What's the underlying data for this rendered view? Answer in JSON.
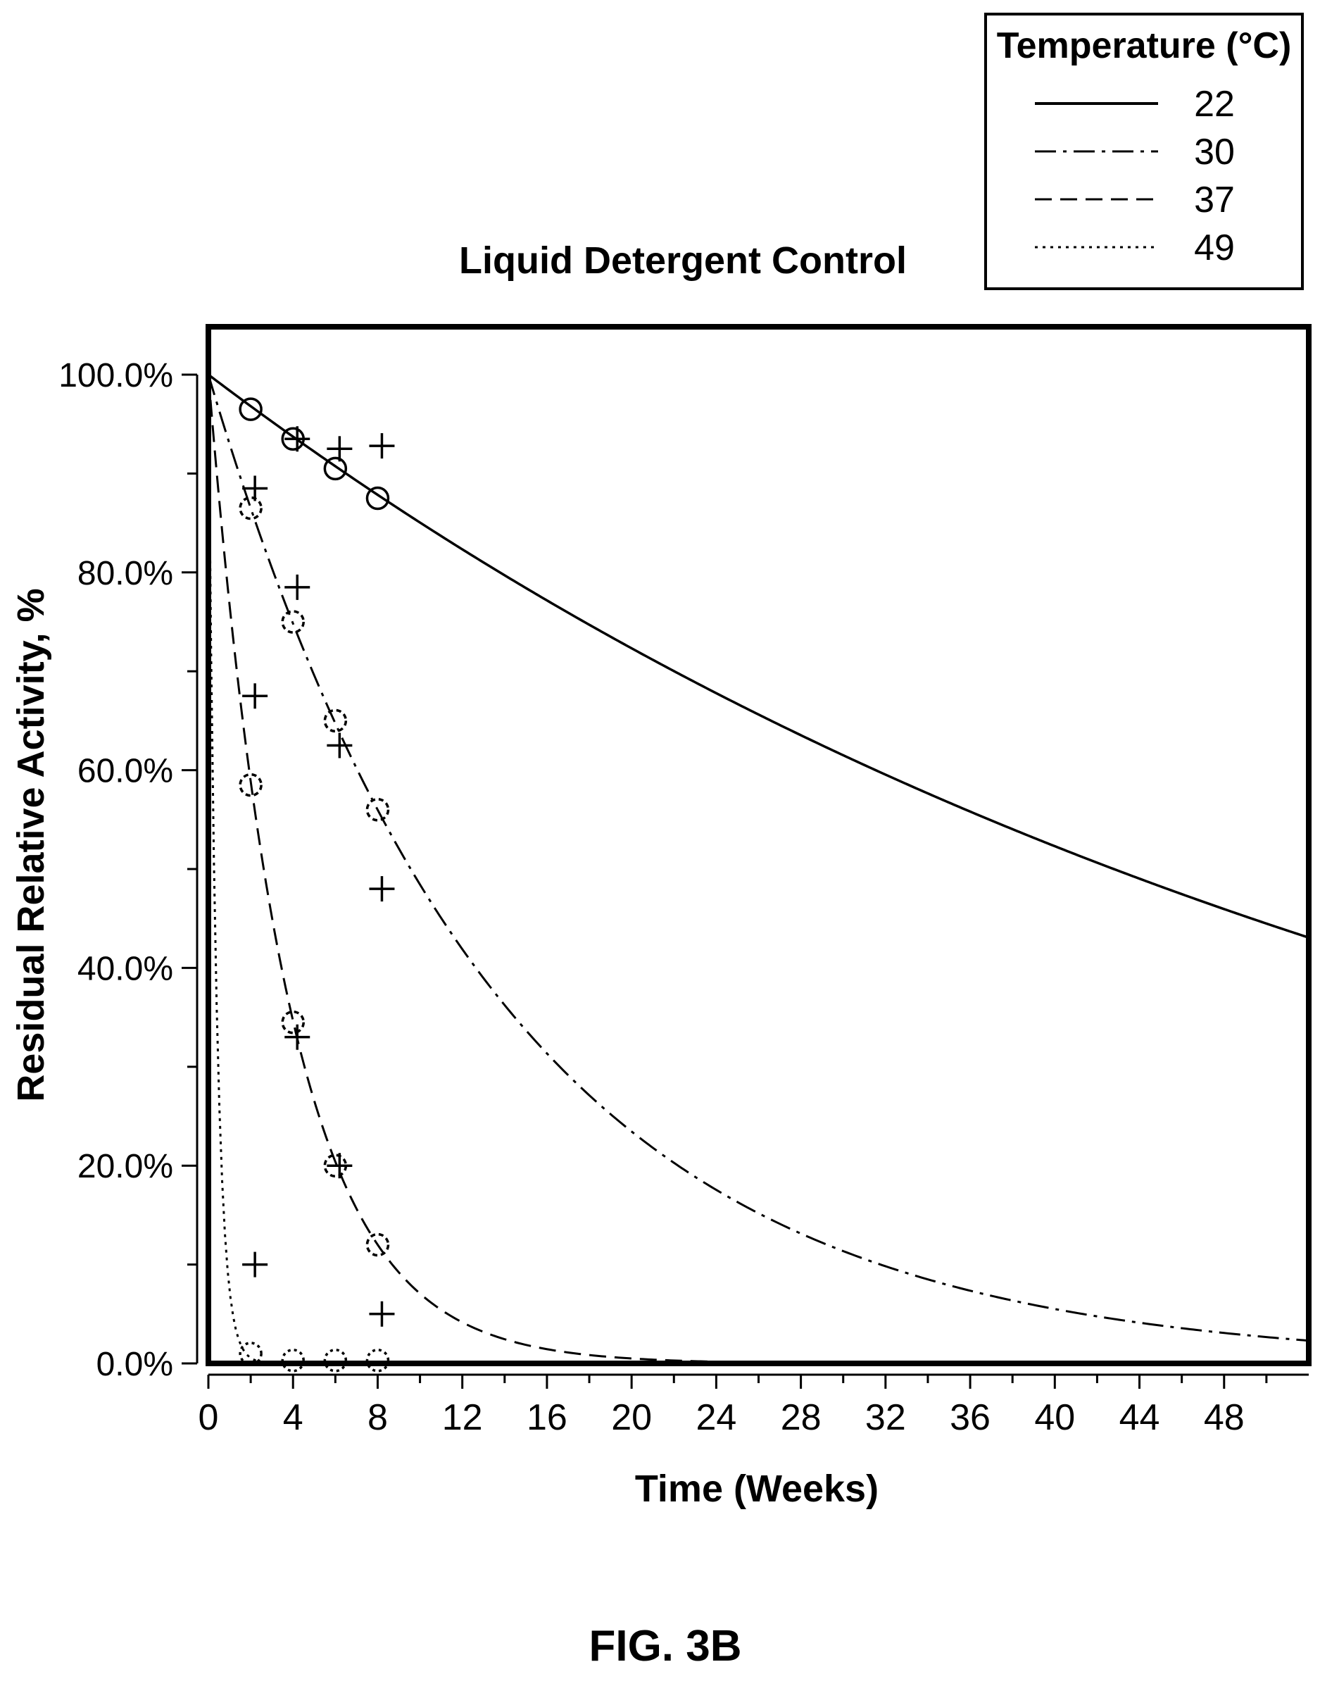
{
  "chart_data": {
    "type": "line",
    "title": "Liquid Detergent Control",
    "xlabel": "Time (Weeks)",
    "ylabel": "Residual Relative Activity, %",
    "xlim": [
      0,
      52
    ],
    "ylim": [
      0,
      100
    ],
    "xticks": [
      0,
      4,
      8,
      12,
      16,
      20,
      24,
      28,
      32,
      36,
      40,
      44,
      48
    ],
    "xtick_labels": [
      "0",
      "4",
      "8",
      "12",
      "16",
      "20",
      "24",
      "28",
      "32",
      "36",
      "40",
      "44",
      "48"
    ],
    "yticks": [
      0,
      20,
      40,
      60,
      80,
      100
    ],
    "ytick_labels": [
      "0.0%",
      "20.0%",
      "40.0%",
      "60.0%",
      "80.0%",
      "100.0%"
    ],
    "grid": false,
    "legend": {
      "title": "Temperature (°C)",
      "placement": "top-right",
      "entries": [
        "22",
        "30",
        "37",
        "49"
      ]
    },
    "series": [
      {
        "name": "22",
        "line_style": "solid",
        "fit_decay_rate_per_week": 0.0162,
        "circle_points": [
          [
            2,
            96.5
          ],
          [
            4,
            93.5
          ],
          [
            6,
            90.5
          ],
          [
            8,
            87.5
          ]
        ],
        "plus_points": [
          [
            4,
            93.5
          ],
          [
            6,
            92.5
          ],
          [
            8,
            92.8
          ]
        ]
      },
      {
        "name": "30",
        "line_style": "dashdot",
        "fit_decay_rate_per_week": 0.0725,
        "circle_points": [
          [
            2,
            86.5
          ],
          [
            4,
            75
          ],
          [
            6,
            65
          ],
          [
            8,
            56
          ]
        ],
        "plus_points": [
          [
            2,
            88.5
          ],
          [
            4,
            78.5
          ],
          [
            6,
            62.5
          ],
          [
            8,
            48
          ]
        ]
      },
      {
        "name": "37",
        "line_style": "dashed",
        "fit_decay_rate_per_week": 0.265,
        "circle_points": [
          [
            2,
            58.5
          ],
          [
            4,
            34.5
          ],
          [
            6,
            20
          ],
          [
            8,
            12
          ]
        ],
        "plus_points": [
          [
            2,
            67.5
          ],
          [
            4,
            33
          ],
          [
            6,
            20
          ],
          [
            8,
            5
          ]
        ]
      },
      {
        "name": "49",
        "line_style": "dotted",
        "fit_decay_rate_per_week": 2.6,
        "circle_points": [
          [
            2,
            1
          ],
          [
            4,
            0.3
          ],
          [
            6,
            0.3
          ],
          [
            8,
            0.3
          ]
        ],
        "plus_points": [
          [
            2,
            10
          ]
        ]
      }
    ]
  },
  "caption": "FIG. 3B"
}
